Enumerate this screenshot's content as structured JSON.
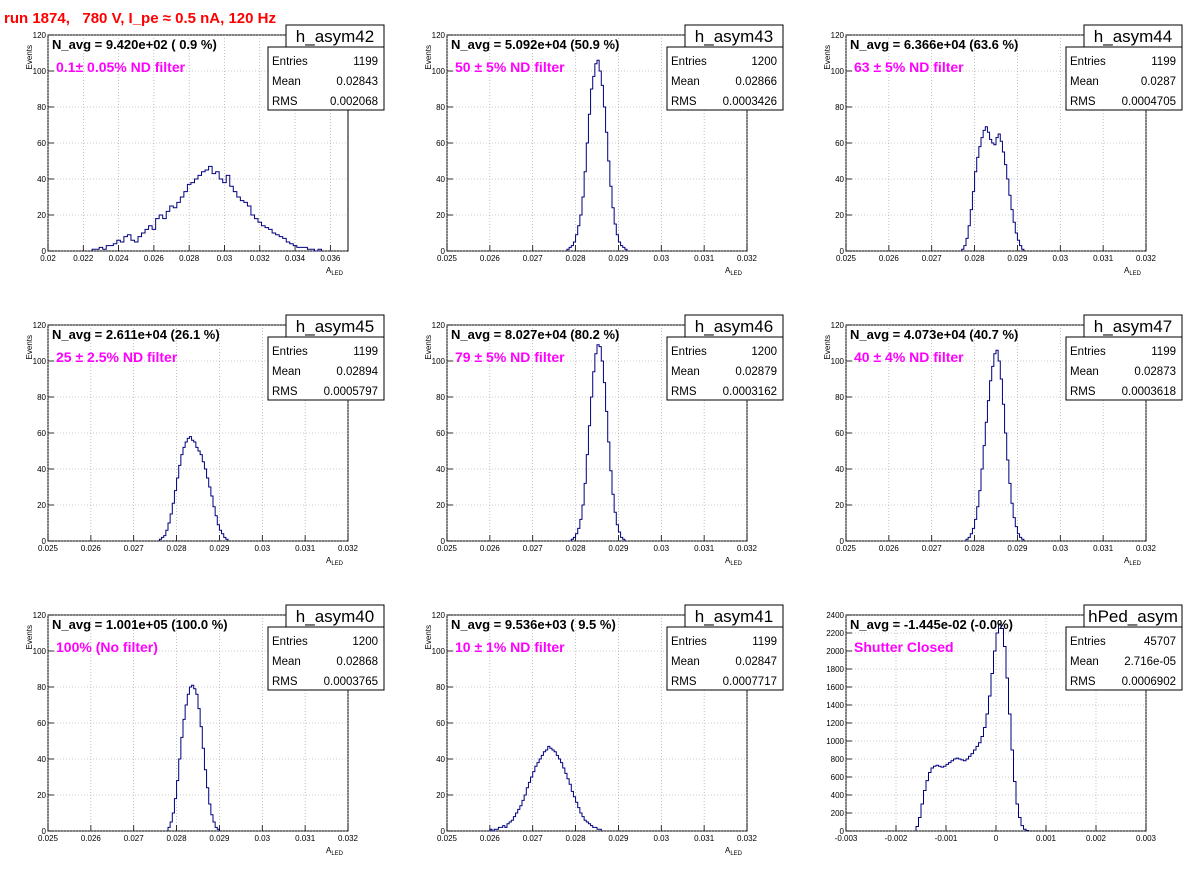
{
  "page": {
    "title": "run 1874,   780 V, I_pe ≈ 0.5 nA, 120 Hz"
  },
  "chart_data": [
    {
      "type": "histogram",
      "name": "h_asym42",
      "navg": "N_avg = 9.420e+02 ( 0.9 %)",
      "annotation": "0.1± 0.05% ND filter",
      "stats": {
        "entries": "1199",
        "mean": "0.02843",
        "rms": "0.002068"
      },
      "xlim": [
        0.02,
        0.037
      ],
      "ylim": [
        0,
        120
      ],
      "xticks": [
        "0.02",
        "0.022",
        "0.024",
        "0.026",
        "0.028",
        "0.03",
        "0.032",
        "0.034",
        "0.036"
      ],
      "yticks": [
        "0",
        "20",
        "40",
        "60",
        "80",
        "100",
        "120"
      ],
      "xlabel": "A",
      "xlabel_sub": "LED",
      "ylabel": "Events",
      "bin_start": 0.0225,
      "bin_width": 0.0002,
      "counts": [
        1,
        1,
        2,
        1,
        3,
        3,
        4,
        6,
        5,
        8,
        9,
        6,
        5,
        8,
        10,
        12,
        14,
        12,
        18,
        20,
        18,
        22,
        25,
        24,
        27,
        30,
        33,
        37,
        38,
        40,
        42,
        44,
        45,
        47,
        43,
        44,
        40,
        38,
        42,
        36,
        33,
        30,
        28,
        27,
        25,
        20,
        18,
        16,
        14,
        13,
        12,
        10,
        9,
        8,
        7,
        5,
        4,
        3,
        2,
        2,
        2,
        1,
        1,
        0,
        1
      ]
    },
    {
      "type": "histogram",
      "name": "h_asym43",
      "navg": "N_avg = 5.092e+04 (50.9 %)",
      "annotation": "50 ± 5% ND filter",
      "stats": {
        "entries": "1200",
        "mean": "0.02866",
        "rms": "0.0003426"
      },
      "xlim": [
        0.025,
        0.032
      ],
      "ylim": [
        0,
        120
      ],
      "xticks": [
        "0.025",
        "0.026",
        "0.027",
        "0.028",
        "0.029",
        "0.03",
        "0.031",
        "0.032"
      ],
      "yticks": [
        "0",
        "20",
        "40",
        "60",
        "80",
        "100",
        "120"
      ],
      "xlabel": "A",
      "xlabel_sub": "LED",
      "ylabel": "Events",
      "bin_start": 0.0278,
      "bin_width": 5e-05,
      "counts": [
        1,
        2,
        3,
        5,
        9,
        14,
        20,
        30,
        44,
        60,
        76,
        90,
        97,
        104,
        106,
        100,
        92,
        80,
        66,
        50,
        36,
        24,
        15,
        9,
        5,
        3,
        2,
        1
      ]
    },
    {
      "type": "histogram",
      "name": "h_asym44",
      "navg": "N_avg = 6.366e+04 (63.6 %)",
      "annotation": "63 ± 5% ND filter",
      "stats": {
        "entries": "1199",
        "mean": "0.0287",
        "rms": "0.0004705"
      },
      "xlim": [
        0.025,
        0.032
      ],
      "ylim": [
        0,
        120
      ],
      "xticks": [
        "0.025",
        "0.026",
        "0.027",
        "0.028",
        "0.029",
        "0.03",
        "0.031",
        "0.032"
      ],
      "yticks": [
        "0",
        "20",
        "40",
        "60",
        "80",
        "100",
        "120"
      ],
      "xlabel": "A",
      "xlabel_sub": "LED",
      "ylabel": "Events",
      "bin_start": 0.0277,
      "bin_width": 5e-05,
      "counts": [
        1,
        3,
        7,
        14,
        23,
        33,
        44,
        52,
        58,
        63,
        67,
        69,
        66,
        62,
        60,
        59,
        63,
        65,
        61,
        55,
        48,
        40,
        31,
        23,
        16,
        10,
        6,
        3,
        1
      ]
    },
    {
      "type": "histogram",
      "name": "h_asym45",
      "navg": "N_avg = 2.611e+04 (26.1 %)",
      "annotation": "25 ± 2.5% ND filter",
      "stats": {
        "entries": "1199",
        "mean": "0.02894",
        "rms": "0.0005797"
      },
      "xlim": [
        0.025,
        0.032
      ],
      "ylim": [
        0,
        120
      ],
      "xticks": [
        "0.025",
        "0.026",
        "0.027",
        "0.028",
        "0.029",
        "0.03",
        "0.031",
        "0.032"
      ],
      "yticks": [
        "0",
        "20",
        "40",
        "60",
        "80",
        "100",
        "120"
      ],
      "xlabel": "A",
      "xlabel_sub": "LED",
      "ylabel": "Events",
      "bin_start": 0.0276,
      "bin_width": 5e-05,
      "counts": [
        1,
        2,
        3,
        6,
        10,
        15,
        21,
        28,
        35,
        42,
        48,
        52,
        55,
        57,
        58,
        56,
        55,
        52,
        50,
        48,
        44,
        40,
        35,
        30,
        25,
        19,
        14,
        9,
        6,
        4,
        2,
        1
      ]
    },
    {
      "type": "histogram",
      "name": "h_asym46",
      "navg": "N_avg = 8.027e+04 (80.2 %)",
      "annotation": "79 ± 5% ND filter",
      "stats": {
        "entries": "1200",
        "mean": "0.02879",
        "rms": "0.0003162"
      },
      "xlim": [
        0.025,
        0.032
      ],
      "ylim": [
        0,
        120
      ],
      "xticks": [
        "0.025",
        "0.026",
        "0.027",
        "0.028",
        "0.029",
        "0.03",
        "0.031",
        "0.032"
      ],
      "yticks": [
        "0",
        "20",
        "40",
        "60",
        "80",
        "100",
        "120"
      ],
      "xlabel": "A",
      "xlabel_sub": "LED",
      "ylabel": "Events",
      "bin_start": 0.0279,
      "bin_width": 5e-05,
      "counts": [
        1,
        2,
        4,
        7,
        12,
        20,
        32,
        48,
        64,
        80,
        94,
        104,
        109,
        108,
        100,
        88,
        72,
        55,
        39,
        26,
        16,
        9,
        5,
        2,
        1
      ]
    },
    {
      "type": "histogram",
      "name": "h_asym47",
      "navg": "N_avg = 4.073e+04 (40.7 %)",
      "annotation": "40 ± 4% ND filter",
      "stats": {
        "entries": "1199",
        "mean": "0.02873",
        "rms": "0.0003618"
      },
      "xlim": [
        0.025,
        0.032
      ],
      "ylim": [
        0,
        120
      ],
      "xticks": [
        "0.025",
        "0.026",
        "0.027",
        "0.028",
        "0.029",
        "0.03",
        "0.031",
        "0.032"
      ],
      "yticks": [
        "0",
        "20",
        "40",
        "60",
        "80",
        "100",
        "120"
      ],
      "xlabel": "A",
      "xlabel_sub": "LED",
      "ylabel": "Events",
      "bin_start": 0.0278,
      "bin_width": 5e-05,
      "counts": [
        1,
        2,
        4,
        7,
        12,
        19,
        28,
        40,
        53,
        66,
        78,
        89,
        97,
        104,
        106,
        100,
        90,
        76,
        60,
        45,
        32,
        21,
        13,
        8,
        4,
        2,
        1
      ]
    },
    {
      "type": "histogram",
      "name": "h_asym40",
      "navg": "N_avg = 1.001e+05 (100.0 %)",
      "annotation": "100% (No filter)",
      "stats": {
        "entries": "1200",
        "mean": "0.02868",
        "rms": "0.0003765"
      },
      "xlim": [
        0.025,
        0.032
      ],
      "ylim": [
        0,
        120
      ],
      "xticks": [
        "0.025",
        "0.026",
        "0.027",
        "0.028",
        "0.029",
        "0.03",
        "0.031",
        "0.032"
      ],
      "yticks": [
        "0",
        "20",
        "40",
        "60",
        "80",
        "100",
        "120"
      ],
      "xlabel": "A",
      "xlabel_sub": "LED",
      "ylabel": "Events",
      "bin_start": 0.0278,
      "bin_width": 5e-05,
      "counts": [
        2,
        5,
        10,
        18,
        28,
        40,
        52,
        62,
        70,
        76,
        80,
        81,
        79,
        76,
        68,
        58,
        46,
        34,
        24,
        15,
        9,
        5,
        2,
        1
      ]
    },
    {
      "type": "histogram",
      "name": "h_asym41",
      "navg": "N_avg = 9.536e+03 ( 9.5 %)",
      "annotation": "10 ± 1% ND filter",
      "stats": {
        "entries": "1199",
        "mean": "0.02847",
        "rms": "0.0007717"
      },
      "xlim": [
        0.025,
        0.032
      ],
      "ylim": [
        0,
        120
      ],
      "xticks": [
        "0.025",
        "0.026",
        "0.027",
        "0.028",
        "0.029",
        "0.03",
        "0.031",
        "0.032"
      ],
      "yticks": [
        "0",
        "20",
        "40",
        "60",
        "80",
        "100",
        "120"
      ],
      "xlabel": "A",
      "xlabel_sub": "LED",
      "ylabel": "Events",
      "bin_start": 0.026,
      "bin_width": 5e-05,
      "counts": [
        1,
        0,
        1,
        1,
        2,
        2,
        3,
        2,
        4,
        5,
        6,
        8,
        10,
        12,
        14,
        17,
        20,
        24,
        27,
        30,
        33,
        36,
        38,
        40,
        42,
        44,
        45,
        47,
        46,
        45,
        44,
        42,
        40,
        38,
        35,
        32,
        29,
        26,
        22,
        19,
        16,
        13,
        10,
        8,
        6,
        5,
        4,
        3,
        2,
        2,
        1,
        1
      ]
    },
    {
      "type": "histogram",
      "name": "hPed_asym",
      "navg": "N_avg = -1.445e-02 (-0.0%)",
      "annotation": "Shutter Closed",
      "stats": {
        "entries": "45707",
        "mean": "2.716e-05",
        "rms": "0.0006902"
      },
      "xlim": [
        -0.003,
        0.003
      ],
      "ylim": [
        0,
        2400
      ],
      "xticks": [
        "-0.003",
        "-0.002",
        "-0.001",
        "0",
        "0.001",
        "0.002",
        "0.003"
      ],
      "yticks": [
        "0",
        "200",
        "400",
        "600",
        "800",
        "1000",
        "1200",
        "1400",
        "1600",
        "1800",
        "2000",
        "2200",
        "2400"
      ],
      "xlabel": "",
      "xlabel_sub": "",
      "ylabel": "",
      "bin_start": -0.0016,
      "bin_width": 5e-05,
      "counts": [
        50,
        150,
        300,
        450,
        560,
        650,
        700,
        720,
        730,
        720,
        710,
        720,
        740,
        760,
        780,
        800,
        810,
        800,
        790,
        780,
        800,
        830,
        860,
        900,
        940,
        980,
        1050,
        1150,
        1300,
        1500,
        1750,
        2000,
        2200,
        2300,
        2250,
        2050,
        1700,
        1300,
        900,
        550,
        300,
        150,
        60,
        20,
        5
      ]
    }
  ],
  "colors": {
    "histogram_line": "#00007f",
    "annotation": "#ff00ff",
    "title": "#ff0000",
    "grid": "#9a9a9a"
  }
}
